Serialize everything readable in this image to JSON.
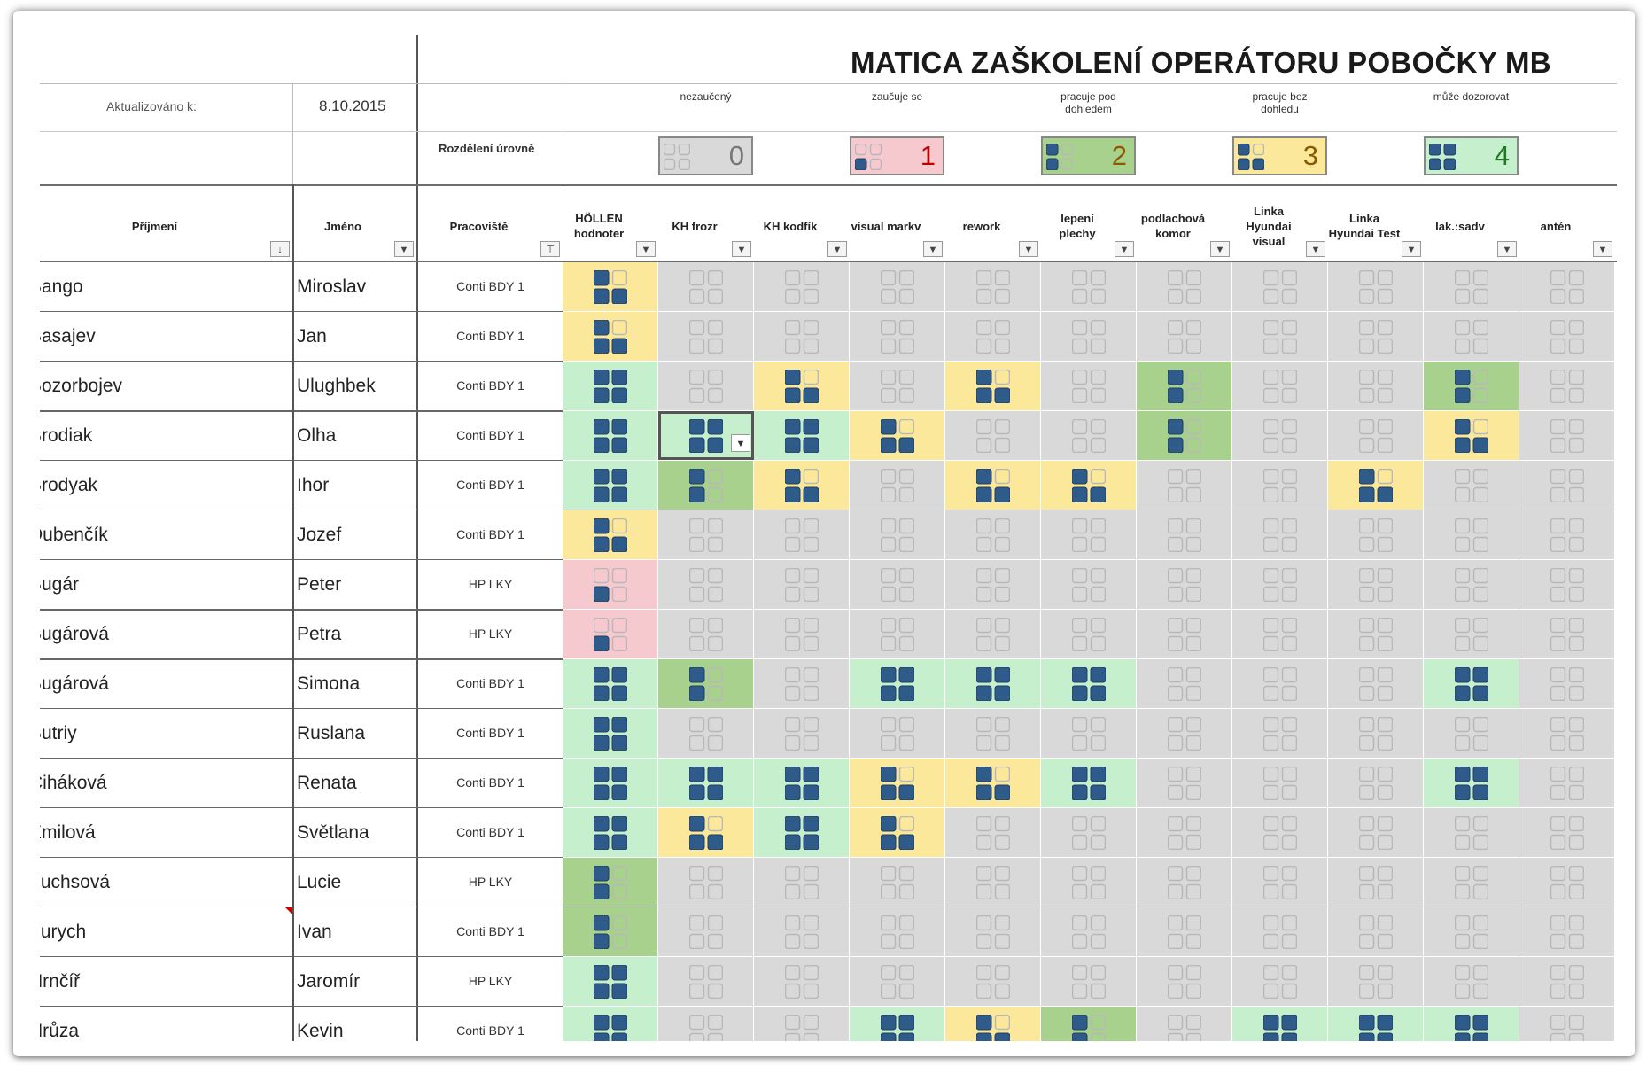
{
  "title": "MATICA ZAŠKOLENÍ OPERÁTORU POBOČKY MB",
  "updated_label": "Aktualizováno k:",
  "updated_date": "8.10.2015",
  "distribution_label": "Rozdělení úrovně",
  "legend": [
    {
      "label": "nezaučený",
      "value": "0",
      "color": "#d9d9d9",
      "num_color": "#777777"
    },
    {
      "label": "zaučuje se",
      "value": "1",
      "color": "#f6c9cf",
      "num_color": "#c00000"
    },
    {
      "label": "pracuje pod dohledem",
      "value": "2",
      "color": "#a9d18e",
      "num_color": "#8a5a00"
    },
    {
      "label": "pracuje bez dohledu",
      "value": "3",
      "color": "#fbe89a",
      "num_color": "#8a5a00"
    },
    {
      "label": "může dozorovat",
      "value": "4",
      "color": "#c6efce",
      "num_color": "#1f7a1f"
    }
  ],
  "headers": {
    "surname": "Příjmení",
    "name": "Jméno",
    "workplace": "Pracoviště",
    "skills": [
      "HÖLLEN hodnoter",
      "KH frozr",
      "KH kodfík",
      "visual markv",
      "rework",
      "lepení plechy",
      "podlachová komor",
      "Linka Hyundai visual",
      "Linka Hyundai Test",
      "lak.:sadv",
      "antén"
    ]
  },
  "icon_color": "#2e5b8a",
  "rows": [
    {
      "surname": "Bango",
      "name": "Miroslav",
      "workplace": "Conti BDY 1",
      "levels": [
        3,
        0,
        0,
        0,
        0,
        0,
        0,
        0,
        0,
        0,
        0
      ]
    },
    {
      "surname": "Basajev",
      "name": "Jan",
      "workplace": "Conti BDY 1",
      "levels": [
        3,
        0,
        0,
        0,
        0,
        0,
        0,
        0,
        0,
        0,
        0
      ]
    },
    {
      "surname": "Bozorbojev",
      "name": "Ulughbek",
      "workplace": "Conti BDY 1",
      "levels": [
        4,
        0,
        3,
        0,
        3,
        0,
        2,
        0,
        0,
        2,
        0
      ]
    },
    {
      "surname": "Brodiak",
      "name": "Olha",
      "workplace": "Conti BDY 1",
      "levels": [
        4,
        4,
        4,
        3,
        0,
        0,
        2,
        0,
        0,
        3,
        0
      ]
    },
    {
      "surname": "Brodyak",
      "name": "Ihor",
      "workplace": "Conti BDY 1",
      "levels": [
        4,
        2,
        3,
        0,
        3,
        3,
        0,
        0,
        3,
        0,
        0
      ]
    },
    {
      "surname": "Dubenčík",
      "name": "Jozef",
      "workplace": "Conti BDY 1",
      "levels": [
        3,
        0,
        0,
        0,
        0,
        0,
        0,
        0,
        0,
        0,
        0
      ]
    },
    {
      "surname": "Bugár",
      "name": "Peter",
      "workplace": "HP LKY",
      "levels": [
        1,
        0,
        0,
        0,
        0,
        0,
        0,
        0,
        0,
        0,
        0
      ]
    },
    {
      "surname": "Bugárová",
      "name": "Petra",
      "workplace": "HP LKY",
      "levels": [
        1,
        0,
        0,
        0,
        0,
        0,
        0,
        0,
        0,
        0,
        0
      ]
    },
    {
      "surname": "Bugárová",
      "name": "Simona",
      "workplace": "Conti BDY 1",
      "levels": [
        4,
        2,
        0,
        4,
        4,
        4,
        0,
        0,
        0,
        4,
        0
      ]
    },
    {
      "surname": "Butriy",
      "name": "Ruslana",
      "workplace": "Conti BDY 1",
      "levels": [
        4,
        0,
        0,
        0,
        0,
        0,
        0,
        0,
        0,
        0,
        0
      ]
    },
    {
      "surname": "Čiháková",
      "name": "Renata",
      "workplace": "Conti BDY 1",
      "levels": [
        4,
        4,
        4,
        3,
        3,
        4,
        0,
        0,
        0,
        4,
        0
      ]
    },
    {
      "surname": "Emilová",
      "name": "Světlana",
      "workplace": "Conti BDY 1",
      "levels": [
        4,
        3,
        4,
        3,
        0,
        0,
        0,
        0,
        0,
        0,
        0
      ]
    },
    {
      "surname": "Fuchsová",
      "name": "Lucie",
      "workplace": "HP LKY",
      "levels": [
        2,
        0,
        0,
        0,
        0,
        0,
        0,
        0,
        0,
        0,
        0
      ]
    },
    {
      "surname": "Furych",
      "name": "Ivan",
      "workplace": "Conti BDY 1",
      "levels": [
        2,
        0,
        0,
        0,
        0,
        0,
        0,
        0,
        0,
        0,
        0
      ]
    },
    {
      "surname": "Hrnčíř",
      "name": "Jaromír",
      "workplace": "HP LKY",
      "levels": [
        4,
        0,
        0,
        0,
        0,
        0,
        0,
        0,
        0,
        0,
        0
      ]
    },
    {
      "surname": "Hrůza",
      "name": "Kevin",
      "workplace": "Conti BDY 1",
      "levels": [
        4,
        0,
        0,
        4,
        3,
        2,
        0,
        4,
        4,
        4,
        0
      ]
    }
  ]
}
